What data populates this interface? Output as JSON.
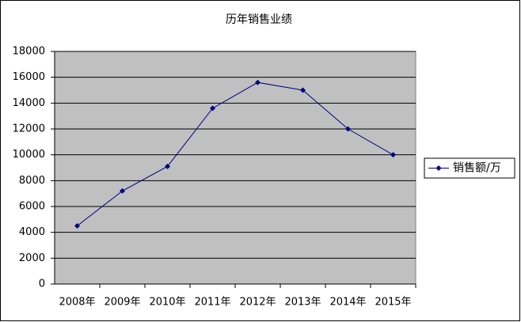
{
  "chart_data": {
    "type": "line",
    "title": "历年销售业绩",
    "categories": [
      "2008年",
      "2009年",
      "2010年",
      "2011年",
      "2012年",
      "2013年",
      "2014年",
      "2015年"
    ],
    "series": [
      {
        "name": "销售额/万",
        "color": "#000080",
        "values": [
          4500,
          7200,
          9100,
          13600,
          15600,
          15000,
          12000,
          10000
        ]
      }
    ],
    "ylim": [
      0,
      18000
    ],
    "yticks": [
      0,
      2000,
      4000,
      6000,
      8000,
      10000,
      12000,
      14000,
      16000,
      18000
    ],
    "grid": true,
    "legend": "right",
    "plot_background": "#c0c0c0"
  }
}
